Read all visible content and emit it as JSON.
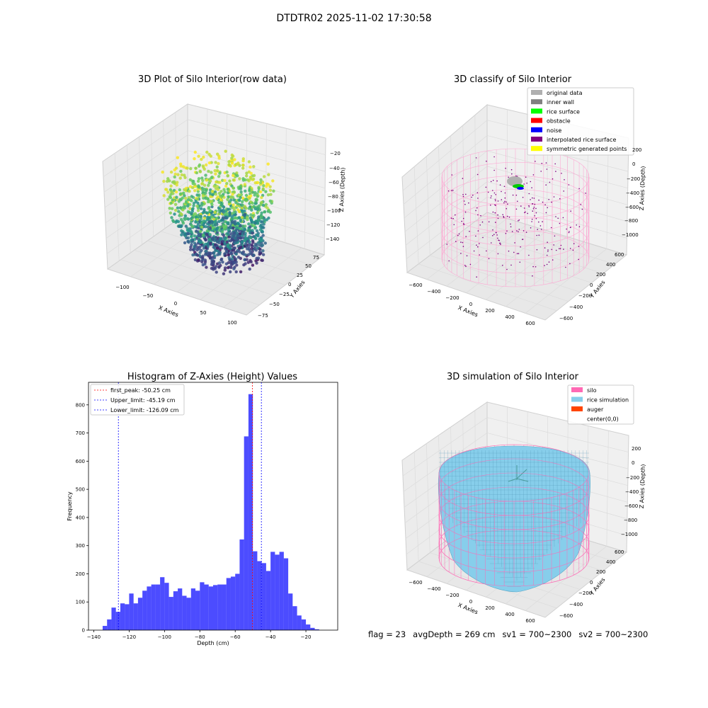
{
  "suptitle": "DTDTR02 2025-11-02 17:30:58",
  "footer": {
    "flag": "flag = 23",
    "avg_depth": "avgDepth = 269 cm",
    "sv1": "sv1 = 700~2300",
    "sv2": "sv2 = 700~2300"
  },
  "panels": {
    "raw": {
      "title": "3D Plot of Silo Interior(row data)",
      "xlabel": "X Axies",
      "ylabel": "Y Axies",
      "zlabel": "Z Axies (Depth)",
      "xticks": [
        "−100",
        "−50",
        "0",
        "50",
        "100"
      ],
      "yticks": [
        "−75",
        "−50",
        "−25",
        "0",
        "25",
        "50",
        "75"
      ],
      "zticks": [
        "−20",
        "−40",
        "−60",
        "−80",
        "−100",
        "−120",
        "−140"
      ]
    },
    "classify": {
      "title": "3D classify of Silo Interior",
      "xlabel": "X Axies",
      "ylabel": "Y Axies",
      "zlabel": "Z Axies (Depth)",
      "xticks": [
        "−600",
        "−400",
        "−200",
        "0",
        "200",
        "400",
        "600"
      ],
      "yticks": [
        "−600",
        "−400",
        "−200",
        "0",
        "200",
        "400",
        "600"
      ],
      "zticks": [
        "200",
        "0",
        "−200",
        "−400",
        "−600",
        "−800",
        "−1000"
      ],
      "legend": [
        {
          "label": "original data",
          "color": "#b0b0b0"
        },
        {
          "label": "inner wall",
          "color": "#808080"
        },
        {
          "label": "rice surface",
          "color": "#00ff00"
        },
        {
          "label": "obstacle",
          "color": "#ff0000"
        },
        {
          "label": "noise",
          "color": "#0000ff"
        },
        {
          "label": "interpolated rice surface",
          "color": "#800080"
        },
        {
          "label": "symmetric generated points",
          "color": "#ffff00"
        }
      ]
    },
    "simulation": {
      "title": "3D simulation of Silo Interior",
      "xlabel": "X Axies",
      "ylabel": "Y Axies",
      "zlabel": "Z Axies (Depth)",
      "xticks": [
        "−600",
        "−400",
        "−200",
        "0",
        "200",
        "400",
        "600"
      ],
      "yticks": [
        "−600",
        "−400",
        "−200",
        "0",
        "200",
        "400",
        "600"
      ],
      "zticks": [
        "200",
        "0",
        "−200",
        "−400",
        "−600",
        "−800",
        "−1000"
      ],
      "legend": [
        {
          "label": "silo",
          "color": "#ff69b4"
        },
        {
          "label": "rice simulation",
          "color": "#87ceeb"
        },
        {
          "label": "auger",
          "color": "#ff4500"
        },
        {
          "label": "center(0,0)",
          "color": "none"
        }
      ]
    }
  },
  "chart_data": {
    "type": "bar",
    "title": "Histogram of Z-Axies (Height) Values",
    "xlabel": "Depth (cm)",
    "ylabel": "Frequency",
    "xlim": [
      -143,
      -2
    ],
    "ylim": [
      0,
      880
    ],
    "xticks": [
      -140,
      -120,
      -100,
      -80,
      -60,
      -40,
      -20
    ],
    "yticks": [
      0,
      100,
      200,
      300,
      400,
      500,
      600,
      700,
      800
    ],
    "bin_start": -135,
    "bin_width": 2.5,
    "values": [
      15,
      38,
      80,
      65,
      95,
      92,
      130,
      95,
      115,
      140,
      155,
      162,
      162,
      188,
      168,
      118,
      138,
      148,
      122,
      115,
      148,
      140,
      170,
      162,
      155,
      160,
      162,
      162,
      185,
      190,
      200,
      322,
      688,
      838,
      280,
      245,
      238,
      210,
      278,
      268,
      278,
      255,
      130,
      85,
      52,
      38,
      20,
      8,
      3
    ],
    "bar_color": "#0000ff",
    "bar_alpha": 0.7,
    "vlines": [
      {
        "label": "first_peak: -50.25 cm",
        "x": -50.25,
        "color": "#ff0000"
      },
      {
        "label": "Upper_limit: -45.19 cm",
        "x": -45.19,
        "color": "#0000ff"
      },
      {
        "label": "Lower_limit: -126.09 cm",
        "x": -126.09,
        "color": "#0000ff"
      }
    ],
    "legend_position": "upper-left"
  }
}
